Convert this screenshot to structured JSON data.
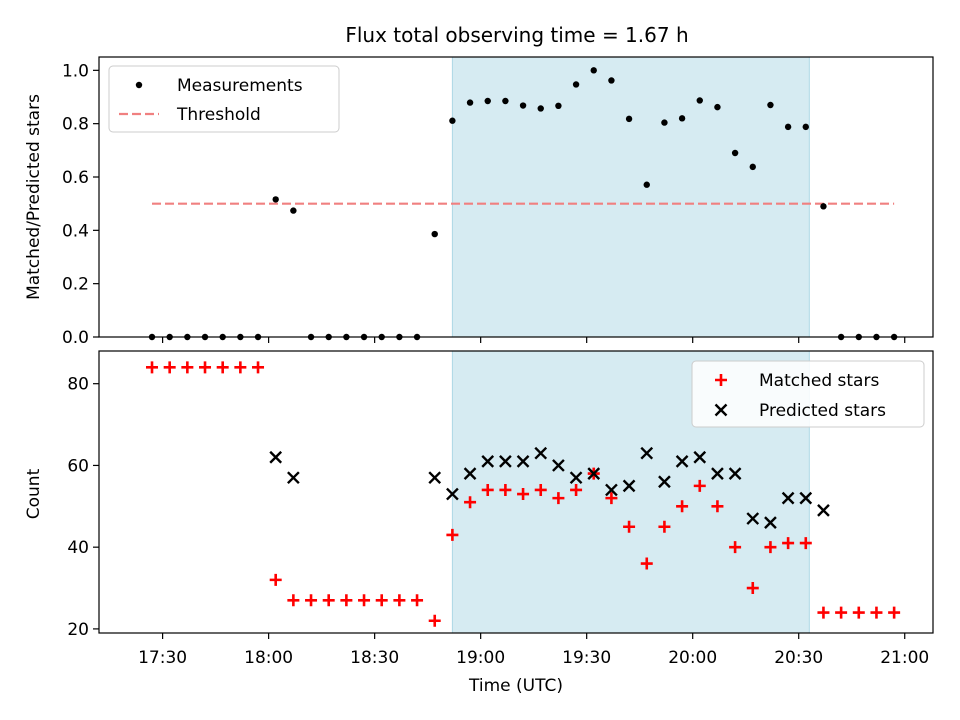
{
  "chart_data": [
    {
      "type": "scatter",
      "title": "Flux total observing time = 1.67 h",
      "xlabel": "",
      "ylabel": "Matched/Predicted stars",
      "ylim": [
        0,
        1.05
      ],
      "yticks": [
        "0.0",
        "0.2",
        "0.4",
        "0.6",
        "0.8",
        "1.0"
      ],
      "ytick_values": [
        0,
        0.2,
        0.4,
        0.6,
        0.8,
        1.0
      ],
      "shaded_interval": [
        "18:52",
        "20:33"
      ],
      "threshold": 0.5,
      "threshold_range": [
        "17:27",
        "20:57"
      ],
      "colors": {
        "measurements": "#000000",
        "threshold": "#f08080",
        "shade": "#add8e6"
      },
      "legend": {
        "position": "top-left",
        "entries": [
          "Measurements",
          "Threshold"
        ]
      },
      "series": [
        {
          "name": "Measurements",
          "x": [
            "17:27",
            "17:32",
            "17:37",
            "17:42",
            "17:47",
            "17:52",
            "17:57",
            "18:02",
            "18:07",
            "18:12",
            "18:17",
            "18:22",
            "18:27",
            "18:32",
            "18:37",
            "18:42",
            "18:47",
            "18:52",
            "18:57",
            "19:02",
            "19:07",
            "19:12",
            "19:17",
            "19:22",
            "19:27",
            "19:32",
            "19:37",
            "19:42",
            "19:47",
            "19:52",
            "19:57",
            "20:02",
            "20:07",
            "20:12",
            "20:17",
            "20:22",
            "20:27",
            "20:32",
            "20:37",
            "20:42",
            "20:47",
            "20:52",
            "20:57"
          ],
          "y": [
            0,
            0,
            0,
            0,
            0,
            0,
            0,
            0.516,
            0.474,
            0,
            0,
            0,
            0,
            0,
            0,
            0,
            0.386,
            0.811,
            0.879,
            0.885,
            0.885,
            0.868,
            0.857,
            0.867,
            0.947,
            1.0,
            0.962,
            0.818,
            0.571,
            0.804,
            0.82,
            0.887,
            0.862,
            0.69,
            0.638,
            0.87,
            0.788,
            0.788,
            0.49,
            0,
            0,
            0,
            0
          ]
        }
      ]
    },
    {
      "type": "scatter",
      "title": "",
      "xlabel": "Time (UTC)",
      "ylabel": "Count",
      "ylim": [
        19,
        88
      ],
      "yticks": [
        "20",
        "40",
        "60",
        "80"
      ],
      "ytick_values": [
        20,
        40,
        60,
        80
      ],
      "xticks": [
        "17:30",
        "18:00",
        "18:30",
        "19:00",
        "19:30",
        "20:00",
        "20:30",
        "21:00"
      ],
      "xlim": [
        "17:12",
        "21:08"
      ],
      "colors": {
        "matched": "#ff0000",
        "predicted": "#000000"
      },
      "legend": {
        "position": "top-right",
        "entries": [
          "Matched stars",
          "Predicted stars"
        ]
      },
      "series": [
        {
          "name": "Matched stars",
          "x": [
            "17:27",
            "17:32",
            "17:37",
            "17:42",
            "17:47",
            "17:52",
            "17:57",
            "18:02",
            "18:07",
            "18:12",
            "18:17",
            "18:22",
            "18:27",
            "18:32",
            "18:37",
            "18:42",
            "18:47",
            "18:52",
            "18:57",
            "19:02",
            "19:07",
            "19:12",
            "19:17",
            "19:22",
            "19:27",
            "19:32",
            "19:37",
            "19:42",
            "19:47",
            "19:52",
            "19:57",
            "20:02",
            "20:07",
            "20:12",
            "20:17",
            "20:22",
            "20:27",
            "20:32",
            "20:37",
            "20:42",
            "20:47",
            "20:52",
            "20:57"
          ],
          "y": [
            84,
            84,
            84,
            84,
            84,
            84,
            84,
            32,
            27,
            27,
            27,
            27,
            27,
            27,
            27,
            27,
            22,
            43,
            51,
            54,
            54,
            53,
            54,
            52,
            54,
            58,
            52,
            45,
            36,
            45,
            50,
            55,
            50,
            40,
            30,
            40,
            41,
            41,
            24,
            24,
            24,
            24,
            24
          ]
        },
        {
          "name": "Predicted stars",
          "x": [
            "18:02",
            "18:07",
            "18:47",
            "18:52",
            "18:57",
            "19:02",
            "19:07",
            "19:12",
            "19:17",
            "19:22",
            "19:27",
            "19:32",
            "19:37",
            "19:42",
            "19:47",
            "19:52",
            "19:57",
            "20:02",
            "20:07",
            "20:12",
            "20:17",
            "20:22",
            "20:27",
            "20:32",
            "20:37"
          ],
          "y": [
            62,
            57,
            57,
            53,
            58,
            61,
            61,
            61,
            63,
            60,
            57,
            58,
            54,
            55,
            63,
            56,
            61,
            62,
            58,
            58,
            47,
            46,
            52,
            52,
            49
          ]
        }
      ]
    }
  ]
}
